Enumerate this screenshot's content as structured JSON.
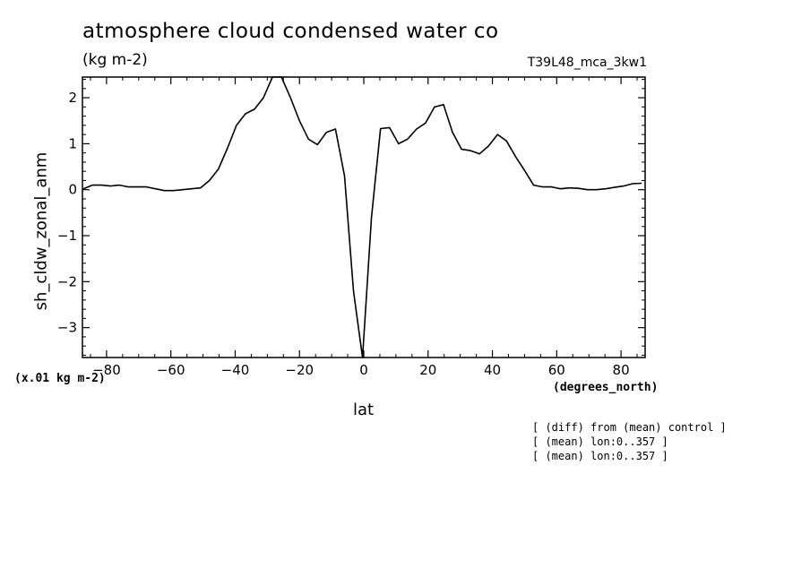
{
  "chart_data": {
    "type": "line",
    "title": "atmosphere cloud condensed water co",
    "units": "(kg m-2)",
    "run_label": "T39L48_mca_3kw1",
    "xlabel": "lat",
    "x_units": "(degrees_north)",
    "ylabel": "sh_cldw_zonal_anm",
    "y_scale_note": "(x.01 kg m-2)",
    "xlim": [
      -87.5,
      87.5
    ],
    "ylim": [
      -3.65,
      2.45
    ],
    "xticks": [
      -80,
      -60,
      -40,
      -20,
      0,
      20,
      40,
      60,
      80
    ],
    "yticks": [
      -3,
      -2,
      -1,
      0,
      1,
      2
    ],
    "grid": false,
    "x": [
      -87.2,
      -84.4,
      -81.6,
      -78.8,
      -76.0,
      -73.2,
      -70.4,
      -67.6,
      -64.8,
      -62.0,
      -59.2,
      -56.4,
      -53.6,
      -50.8,
      -48.0,
      -45.2,
      -42.4,
      -39.6,
      -36.8,
      -34.0,
      -31.2,
      -28.4,
      -25.6,
      -22.8,
      -20.0,
      -17.2,
      -14.4,
      -11.6,
      -8.8,
      -6.0,
      -3.2,
      -0.4,
      2.4,
      5.2,
      8.0,
      10.8,
      13.6,
      16.4,
      19.2,
      22.0,
      24.8,
      27.6,
      30.4,
      33.2,
      36.0,
      38.8,
      41.6,
      44.4,
      47.2,
      50.0,
      52.8,
      55.6,
      58.4,
      61.2,
      64.0,
      66.8,
      69.6,
      72.4,
      75.2,
      78.0,
      80.8,
      83.6,
      86.4
    ],
    "series": [
      {
        "values": [
          0.02,
          0.1,
          0.1,
          0.08,
          0.1,
          0.06,
          0.06,
          0.06,
          0.02,
          -0.02,
          -0.02,
          0.0,
          0.02,
          0.04,
          0.2,
          0.45,
          0.9,
          1.4,
          1.65,
          1.75,
          2.0,
          2.45,
          2.45,
          2.0,
          1.5,
          1.1,
          0.98,
          1.25,
          1.32,
          0.3,
          -2.2,
          -3.65,
          -0.6,
          1.33,
          1.35,
          1.0,
          1.1,
          1.32,
          1.45,
          1.8,
          1.85,
          1.25,
          0.88,
          0.85,
          0.78,
          0.95,
          1.2,
          1.06,
          0.72,
          0.42,
          0.1,
          0.06,
          0.06,
          0.02,
          0.04,
          0.03,
          0.0,
          0.0,
          0.02,
          0.05,
          0.08,
          0.13,
          0.14
        ]
      }
    ],
    "annotations": [
      "[ (diff) from (mean) control ]",
      "[ (mean) lon:0..357 ]",
      "[ (mean) lon:0..357 ]"
    ]
  }
}
